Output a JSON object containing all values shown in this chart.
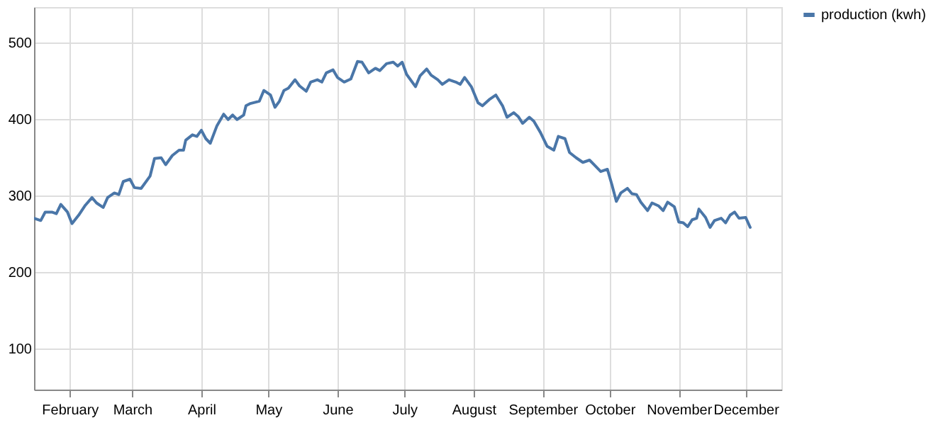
{
  "chart_data": {
    "type": "line",
    "x": [
      "--01-16",
      "--01-19",
      "--01-21",
      "--01-24",
      "--01-26",
      "--01-28",
      "--01-31",
      "--02-02",
      "--02-05",
      "--02-08",
      "--02-11",
      "--02-13",
      "--02-16",
      "--02-18",
      "--02-21",
      "--02-23",
      "--02-25",
      "--02-28",
      "--03-02",
      "--03-05",
      "--03-09",
      "--03-11",
      "--03-14",
      "--03-16",
      "--03-19",
      "--03-22",
      "--03-24",
      "--03-25",
      "--03-28",
      "--03-30",
      "--04-01",
      "--04-03",
      "--04-05",
      "--04-08",
      "--04-11",
      "--04-13",
      "--04-15",
      "--04-17",
      "--04-20",
      "--04-21",
      "--04-23",
      "--04-27",
      "--04-29",
      "--05-02",
      "--05-04",
      "--05-06",
      "--05-08",
      "--05-10",
      "--05-13",
      "--05-15",
      "--05-18",
      "--05-20",
      "--05-23",
      "--05-25",
      "--05-27",
      "--05-30",
      "--06-01",
      "--06-04",
      "--06-07",
      "--06-10",
      "--06-12",
      "--06-15",
      "--06-18",
      "--06-20",
      "--06-23",
      "--06-26",
      "--06-28",
      "--06-30",
      "--07-02",
      "--07-06",
      "--07-08",
      "--07-11",
      "--07-13",
      "--07-16",
      "--07-18",
      "--07-21",
      "--07-24",
      "--07-26",
      "--07-28",
      "--07-31",
      "--08-03",
      "--08-05",
      "--08-08",
      "--08-11",
      "--08-14",
      "--08-16",
      "--08-19",
      "--08-21",
      "--08-23",
      "--08-26",
      "--08-28",
      "--08-31",
      "--09-03",
      "--09-06",
      "--09-08",
      "--09-11",
      "--09-13",
      "--09-16",
      "--09-19",
      "--09-22",
      "--09-24",
      "--09-27",
      "--09-30",
      "--10-02",
      "--10-04",
      "--10-06",
      "--10-09",
      "--10-11",
      "--10-13",
      "--10-15",
      "--10-18",
      "--10-20",
      "--10-23",
      "--10-25",
      "--10-27",
      "--10-30",
      "--11-01",
      "--11-03",
      "--11-05",
      "--11-07",
      "--11-09",
      "--11-10",
      "--11-13",
      "--11-15",
      "--11-17",
      "--11-20",
      "--11-22",
      "--11-24",
      "--11-26",
      "--11-28",
      "--12-01",
      "--12-03"
    ],
    "series": [
      {
        "name": "production (kwh)",
        "color": "#4a76a8",
        "values": [
          270,
          267,
          278,
          278,
          276,
          288,
          278,
          263,
          274,
          287,
          297,
          290,
          284,
          297,
          303,
          301,
          318,
          321,
          310,
          309,
          325,
          348,
          349,
          340,
          352,
          359,
          359,
          372,
          379,
          377,
          385,
          374,
          368,
          391,
          406,
          399,
          405,
          399,
          405,
          417,
          420,
          423,
          437,
          431,
          415,
          423,
          437,
          440,
          451,
          443,
          436,
          448,
          451,
          448,
          460,
          464,
          454,
          448,
          452,
          475,
          474,
          460,
          466,
          463,
          472,
          474,
          469,
          474,
          458,
          442,
          456,
          465,
          457,
          451,
          445,
          451,
          448,
          445,
          454,
          442,
          421,
          417,
          425,
          431,
          417,
          402,
          408,
          403,
          394,
          402,
          397,
          382,
          364,
          359,
          377,
          374,
          356,
          349,
          343,
          346,
          340,
          331,
          334,
          314,
          292,
          303,
          309,
          302,
          301,
          291,
          280,
          290,
          286,
          280,
          291,
          285,
          265,
          264,
          259,
          268,
          270,
          282,
          271,
          258,
          267,
          270,
          264,
          274,
          278,
          270,
          271,
          258
        ]
      }
    ],
    "xlim": [
      "--01-16",
      "--12-17"
    ],
    "xticks": [
      {
        "value": "--02-01",
        "label": "February"
      },
      {
        "value": "--03-01",
        "label": "March"
      },
      {
        "value": "--04-01",
        "label": "April"
      },
      {
        "value": "--05-01",
        "label": "May"
      },
      {
        "value": "--06-01",
        "label": "June"
      },
      {
        "value": "--07-01",
        "label": "July"
      },
      {
        "value": "--08-01",
        "label": "August"
      },
      {
        "value": "--09-01",
        "label": "September"
      },
      {
        "value": "--10-01",
        "label": "October"
      },
      {
        "value": "--11-01",
        "label": "November"
      },
      {
        "value": "--12-01",
        "label": "December"
      }
    ],
    "ylim": [
      46,
      546
    ],
    "yticks": [
      100,
      200,
      300,
      400,
      500
    ],
    "grid": true,
    "legend": "top right",
    "line_style": "solid"
  }
}
